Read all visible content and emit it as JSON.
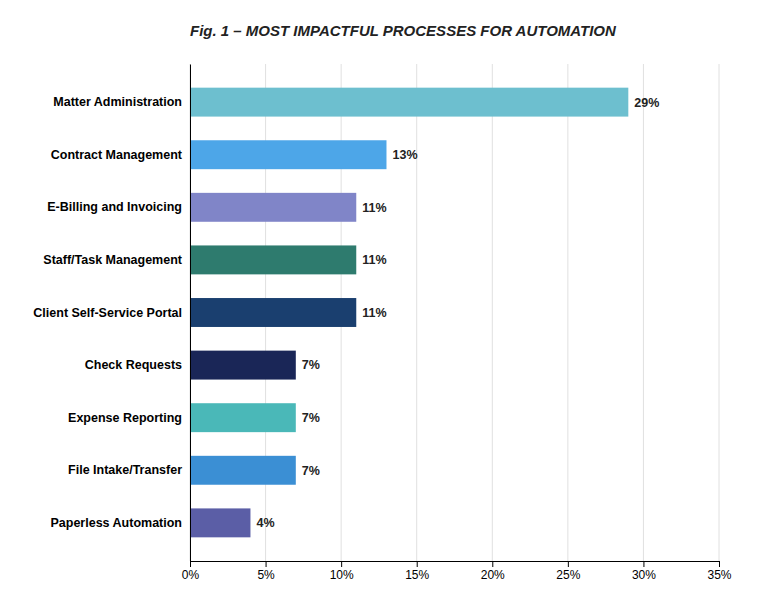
{
  "chart_data": {
    "type": "bar",
    "orientation": "horizontal",
    "title": "Fig. 1 – MOST IMPACTFUL PROCESSES FOR AUTOMATION",
    "categories": [
      "Paperless Automation",
      "File Intake/Transfer",
      "Expense Reporting",
      "Check Requests",
      "Client Self-Service Portal",
      "Staff/Task Management",
      "E-Billing and Invoicing",
      "Contract Management",
      "Matter Administration"
    ],
    "values": [
      4,
      7,
      7,
      7,
      11,
      11,
      11,
      13,
      29
    ],
    "value_labels": [
      "4%",
      "7%",
      "7%",
      "7%",
      "11%",
      "11%",
      "11%",
      "13%",
      "29%"
    ],
    "data_labels": true,
    "colors": [
      "#5b5ea6",
      "#3b8fd4",
      "#4ab8b8",
      "#1a2657",
      "#1a3f6f",
      "#2e7b6e",
      "#8085c8",
      "#4da6e8",
      "#6dbfcf"
    ],
    "xlim": [
      0,
      35
    ],
    "xticks": [
      {
        "value": 0,
        "label": "0%"
      },
      {
        "value": 5,
        "label": "5%"
      },
      {
        "value": 10,
        "label": "10%"
      },
      {
        "value": 15,
        "label": "15%"
      },
      {
        "value": 20,
        "label": "20%"
      },
      {
        "value": 25,
        "label": "25%"
      },
      {
        "value": 30,
        "label": "30%"
      },
      {
        "value": 35,
        "label": "35%"
      }
    ],
    "grid": true
  }
}
